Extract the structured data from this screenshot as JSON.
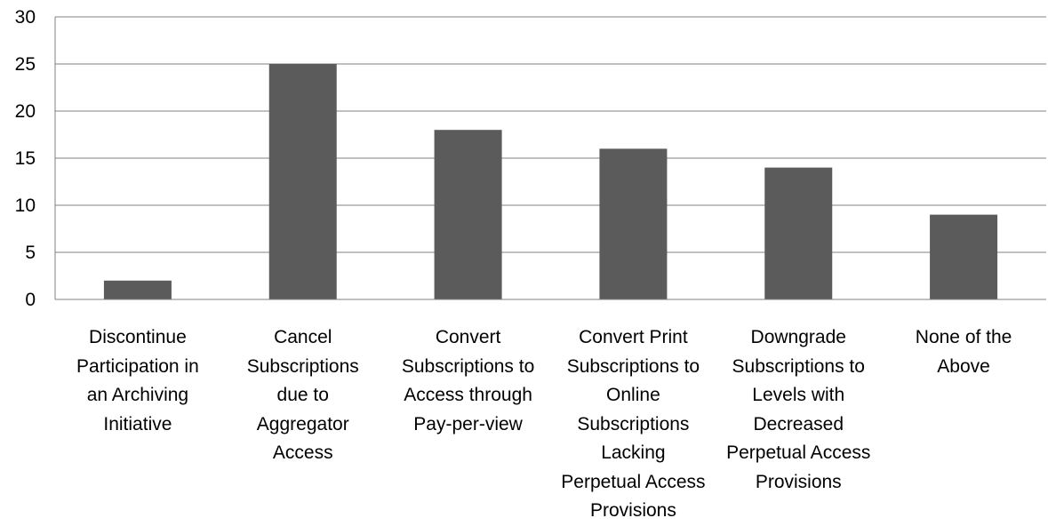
{
  "chart_data": {
    "type": "bar",
    "categories": [
      [
        "Discontinue",
        "Participation in",
        "an Archiving",
        "Initiative"
      ],
      [
        "Cancel",
        "Subscriptions",
        "due to",
        "Aggregator",
        "Access"
      ],
      [
        "Convert",
        "Subscriptions to",
        "Access through",
        "Pay-per-view"
      ],
      [
        "Convert Print",
        "Subscriptions to",
        "Online",
        "Subscriptions",
        "Lacking",
        "Perpetual Access",
        "Provisions"
      ],
      [
        "Downgrade",
        "Subscriptions to",
        "Levels with",
        "Decreased",
        "Perpetual Access",
        "Provisions"
      ],
      [
        "None of the",
        "Above"
      ]
    ],
    "values": [
      2,
      25,
      18,
      16,
      14,
      9
    ],
    "y_ticks": [
      "0",
      "5",
      "10",
      "15",
      "20",
      "25",
      "30"
    ],
    "ylim": [
      0,
      30
    ],
    "grid": true,
    "legend": "none",
    "bar_color": "#5b5b5b",
    "grid_color": "#808080",
    "title": "",
    "xlabel": "",
    "ylabel": ""
  }
}
